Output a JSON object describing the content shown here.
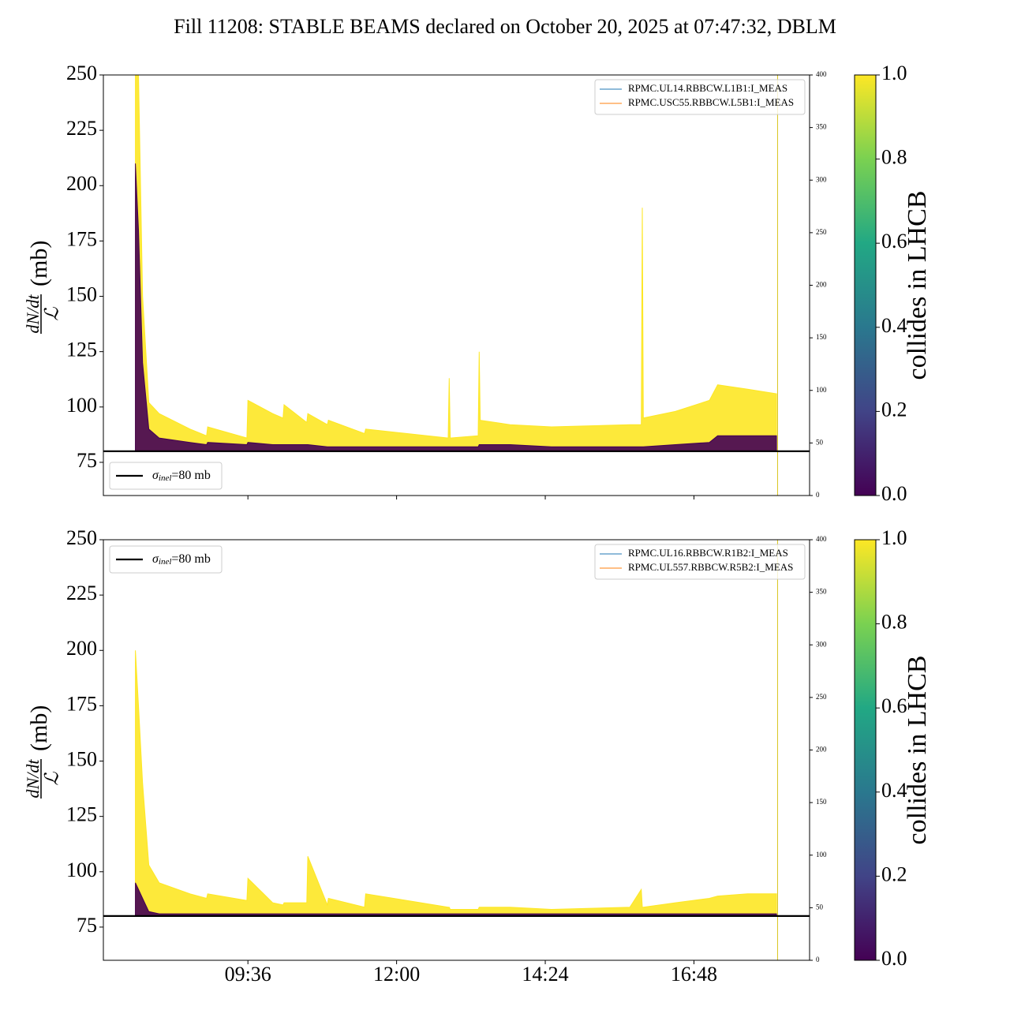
{
  "title": "Fill 11208: STABLE BEAMS declared on October 20, 2025 at 07:47:32, DBLM",
  "chart_data": [
    {
      "type": "area",
      "ylabel": {
        "numerator": "dN/dt",
        "denominator": "ℒ",
        "unit": "(mb)"
      },
      "x": [
        467,
        470,
        474,
        480,
        490,
        520,
        536,
        537,
        575,
        576,
        600,
        610,
        611,
        633,
        634,
        653,
        654,
        689,
        690,
        770,
        771,
        772,
        799,
        800,
        801,
        830,
        870,
        946,
        957,
        958,
        959,
        990,
        1023,
        1031,
        1060,
        1088
      ],
      "series": [
        {
          "color": "#fde725",
          "values": [
            250,
            250,
            150,
            102,
            97,
            90,
            87,
            91,
            86,
            103,
            97,
            95,
            101,
            93,
            97,
            92,
            94,
            88,
            90,
            86,
            113,
            86,
            87,
            125,
            94,
            92,
            91,
            92,
            92,
            190,
            95,
            98,
            103,
            110,
            108,
            106
          ]
        },
        {
          "color": "#440154",
          "values": [
            210,
            180,
            120,
            90,
            86,
            84,
            83,
            84,
            83,
            84,
            83,
            83,
            83,
            83,
            83,
            82,
            82,
            82,
            82,
            82,
            82,
            82,
            82,
            83,
            83,
            83,
            82,
            82,
            82,
            82,
            82,
            83,
            84,
            87,
            87,
            87
          ]
        }
      ],
      "legend": [
        {
          "name": "RPMC.UL14.RBBCW.L1B1:I_MEAS",
          "color": "#1f77b4"
        },
        {
          "name": "RPMC.USC55.RBBCW.L5B1:I_MEAS",
          "color": "#ff7f0e"
        }
      ],
      "legend_loc": "upper right",
      "hline": {
        "value": 80,
        "label": [
          "σ",
          "inel",
          "=80 mb"
        ]
      },
      "hline_legend_loc": "lower left",
      "vline_x": 1089,
      "xlim": [
        436,
        1120
      ],
      "xticks": [
        576,
        720,
        864,
        1008
      ],
      "ylim": [
        60,
        250
      ],
      "yticks": [
        75,
        100,
        125,
        150,
        175,
        200,
        225,
        250
      ],
      "y2lim": [
        0,
        400
      ],
      "y2ticks": [
        0,
        50,
        100,
        150,
        200,
        250,
        300,
        350,
        400
      ],
      "colorbar": {
        "label": "collides in LHCB",
        "lim": [
          0,
          1
        ],
        "ticks": [
          {
            "value": 0,
            "label": "0.0"
          },
          {
            "value": 0.2,
            "label": "0.2"
          },
          {
            "value": 0.4,
            "label": "0.4"
          },
          {
            "value": 0.6,
            "label": "0.6"
          },
          {
            "value": 0.8,
            "label": "0.8"
          },
          {
            "value": 1,
            "label": "1.0"
          }
        ]
      }
    },
    {
      "type": "area",
      "ylabel": {
        "numerator": "dN/dt",
        "denominator": "ℒ",
        "unit": "(mb)"
      },
      "x": [
        467,
        470,
        474,
        480,
        490,
        520,
        536,
        537,
        575,
        576,
        600,
        610,
        611,
        633,
        634,
        653,
        654,
        689,
        690,
        770,
        771,
        772,
        799,
        800,
        801,
        830,
        870,
        946,
        957,
        958,
        959,
        990,
        1023,
        1031,
        1060,
        1088
      ],
      "series": [
        {
          "color": "#fde725",
          "values": [
            200,
            175,
            140,
            103,
            95,
            90,
            88,
            90,
            87,
            97,
            86,
            85,
            86,
            86,
            107,
            85,
            88,
            84,
            90,
            84,
            84,
            83,
            83,
            84,
            84,
            84,
            83,
            84,
            92,
            84,
            84,
            86,
            88,
            89,
            90,
            90
          ]
        },
        {
          "color": "#440154",
          "values": [
            95,
            92,
            88,
            82,
            81,
            81,
            81,
            81,
            81,
            81,
            81,
            81,
            81,
            81,
            81,
            81,
            81,
            81,
            81,
            81,
            81,
            81,
            81,
            81,
            81,
            81,
            81,
            81,
            81,
            81,
            81,
            81,
            81,
            81,
            81,
            81
          ]
        }
      ],
      "legend": [
        {
          "name": "RPMC.UL16.RBBCW.R1B2:I_MEAS",
          "color": "#1f77b4"
        },
        {
          "name": "RPMC.UL557.RBBCW.R5B2:I_MEAS",
          "color": "#ff7f0e"
        }
      ],
      "legend_loc": "upper right",
      "hline": {
        "value": 80,
        "label": [
          "σ",
          "inel",
          "=80 mb"
        ]
      },
      "hline_legend_loc": "upper left",
      "vline_x": 1089,
      "xlim": [
        436,
        1120
      ],
      "xticks": [
        {
          "value": 576,
          "label": "09:36"
        },
        {
          "value": 720,
          "label": "12:00"
        },
        {
          "value": 864,
          "label": "14:24"
        },
        {
          "value": 1008,
          "label": "16:48"
        }
      ],
      "ylim": [
        60,
        250
      ],
      "yticks": [
        75,
        100,
        125,
        150,
        175,
        200,
        225,
        250
      ],
      "y2lim": [
        0,
        400
      ],
      "y2ticks": [
        0,
        50,
        100,
        150,
        200,
        250,
        300,
        350,
        400
      ],
      "colorbar": {
        "label": "collides in LHCB",
        "lim": [
          0,
          1
        ],
        "ticks": [
          {
            "value": 0,
            "label": "0.0"
          },
          {
            "value": 0.2,
            "label": "0.2"
          },
          {
            "value": 0.4,
            "label": "0.4"
          },
          {
            "value": 0.6,
            "label": "0.6"
          },
          {
            "value": 0.8,
            "label": "0.8"
          },
          {
            "value": 1,
            "label": "1.0"
          }
        ]
      }
    }
  ]
}
